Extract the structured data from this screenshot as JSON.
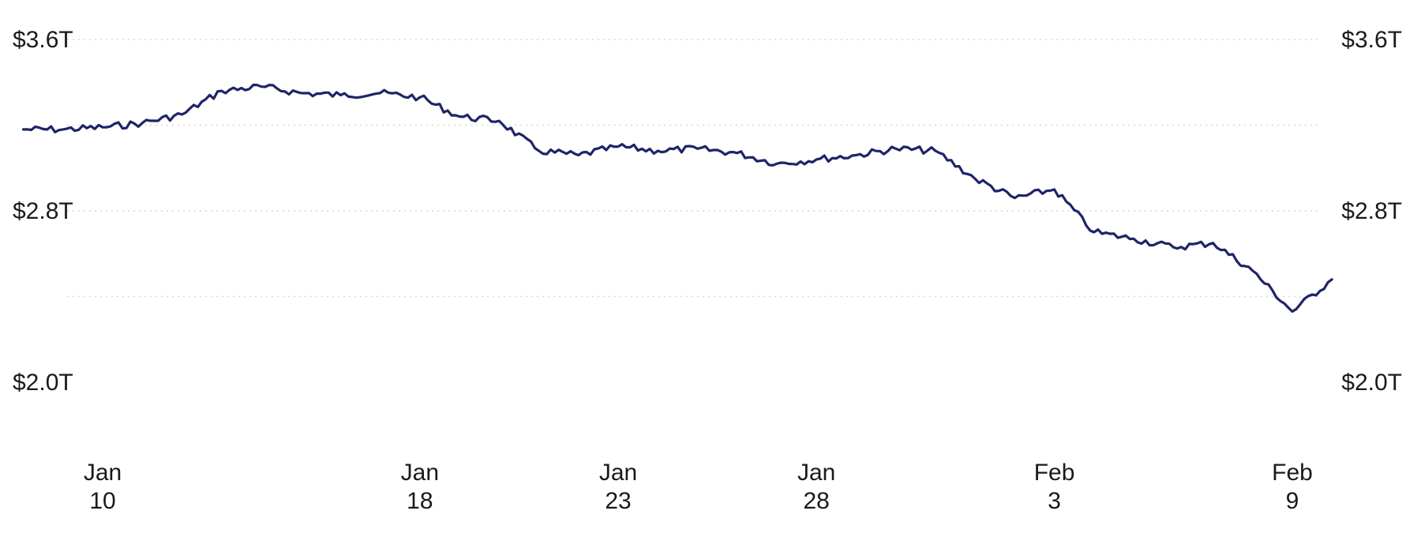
{
  "chart_data": {
    "type": "line",
    "title": "",
    "xlabel": "",
    "ylabel": "",
    "grid": true,
    "y_unit_prefix": "$",
    "y_unit_suffix": "T",
    "ylim": [
      2.0,
      3.6
    ],
    "y_ticks": [
      {
        "value": 3.6,
        "label": "$3.6T"
      },
      {
        "value": 2.8,
        "label": "$2.8T"
      },
      {
        "value": 2.0,
        "label": "$2.0T"
      }
    ],
    "y_gridlines": [
      3.6,
      3.2,
      2.8,
      2.4
    ],
    "x_ticks": [
      {
        "date": "2025-01-10",
        "month": "Jan",
        "day": "10"
      },
      {
        "date": "2025-01-18",
        "month": "Jan",
        "day": "18"
      },
      {
        "date": "2025-01-23",
        "month": "Jan",
        "day": "23"
      },
      {
        "date": "2025-01-28",
        "month": "Jan",
        "day": "28"
      },
      {
        "date": "2025-02-03",
        "month": "Feb",
        "day": "3"
      },
      {
        "date": "2025-02-09",
        "month": "Feb",
        "day": "9"
      }
    ],
    "series": [
      {
        "color": "#1f2468",
        "x": [
          "2025-01-08",
          "2025-01-09",
          "2025-01-10",
          "2025-01-11",
          "2025-01-12",
          "2025-01-13",
          "2025-01-14",
          "2025-01-15",
          "2025-01-16",
          "2025-01-17",
          "2025-01-18",
          "2025-01-19",
          "2025-01-20",
          "2025-01-21",
          "2025-01-22",
          "2025-01-23",
          "2025-01-24",
          "2025-01-25",
          "2025-01-26",
          "2025-01-27",
          "2025-01-28",
          "2025-01-29",
          "2025-01-30",
          "2025-01-31",
          "2025-02-01",
          "2025-02-02",
          "2025-02-03",
          "2025-02-04",
          "2025-02-05",
          "2025-02-06",
          "2025-02-07",
          "2025-02-08",
          "2025-02-09",
          "2025-02-10"
        ],
        "y": [
          3.18,
          3.18,
          3.19,
          3.21,
          3.25,
          3.36,
          3.38,
          3.35,
          3.34,
          3.35,
          3.33,
          3.24,
          3.22,
          3.08,
          3.06,
          3.1,
          3.08,
          3.09,
          3.07,
          3.02,
          3.04,
          3.06,
          3.09,
          3.08,
          2.95,
          2.86,
          2.9,
          2.7,
          2.67,
          2.63,
          2.65,
          2.52,
          2.33,
          2.48
        ]
      }
    ]
  }
}
